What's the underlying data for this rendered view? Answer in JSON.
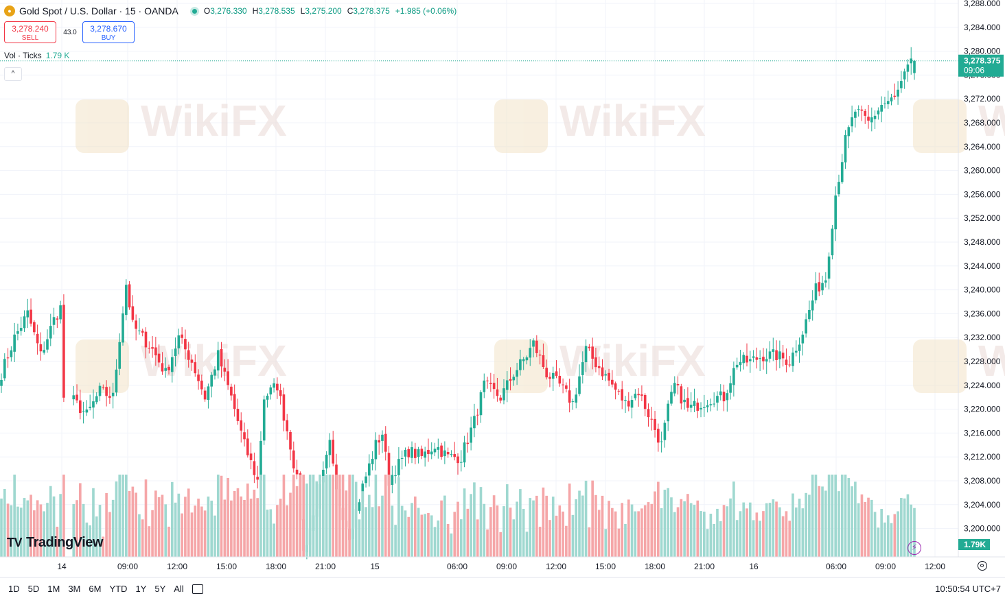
{
  "header": {
    "symbol_title": "Gold Spot / U.S. Dollar · 15 · OANDA",
    "o_label": "O",
    "o_value": "3,276.330",
    "h_label": "H",
    "h_value": "3,278.535",
    "l_label": "L",
    "l_value": "3,275.200",
    "c_label": "C",
    "c_value": "3,278.375",
    "change": "+1.985 (+0.06%)"
  },
  "trade": {
    "sell_price": "3,278.240",
    "sell_label": "SELL",
    "spread": "43.0",
    "buy_price": "3,278.670",
    "buy_label": "BUY"
  },
  "volume_legend": {
    "label": "Vol · Ticks",
    "value": "1.79 K"
  },
  "price_badge": {
    "price": "3,278.375",
    "countdown": "09:06"
  },
  "volume_badge": "1.79K",
  "logo": "TradingView",
  "time_ranges": [
    "1D",
    "5D",
    "1M",
    "3M",
    "6M",
    "YTD",
    "1Y",
    "5Y",
    "All"
  ],
  "clock": "10:50:54 UTC+7",
  "watermark": "WikiFX",
  "colors": {
    "up": "#22ab94",
    "down": "#f23645",
    "up_vol": "#9fd8d0",
    "down_vol": "#f5a6a8",
    "grid": "#f0f3fa",
    "watermark": "#f3e3c8"
  },
  "chart_data": {
    "type": "candlestick",
    "symbol": "XAUUSD",
    "interval": "15",
    "ylim": [
      3198,
      3288
    ],
    "y_ticks": [
      3200,
      3204,
      3208,
      3212,
      3216,
      3220,
      3224,
      3228,
      3232,
      3236,
      3240,
      3244,
      3248,
      3252,
      3256,
      3260,
      3264,
      3268,
      3272,
      3276,
      3280,
      3284,
      3288
    ],
    "x_ticks": [
      "14",
      "09:00",
      "12:00",
      "15:00",
      "18:00",
      "21:00",
      "15",
      "06:00",
      "09:00",
      "12:00",
      "15:00",
      "18:00",
      "21:00",
      "16",
      "06:00",
      "09:00",
      "12:00"
    ],
    "close_anchors": [
      [
        0,
        3226
      ],
      [
        4,
        3232
      ],
      [
        8,
        3236
      ],
      [
        12,
        3229
      ],
      [
        16,
        3235
      ],
      [
        18,
        3237
      ],
      [
        19,
        3222
      ],
      [
        24,
        3219
      ],
      [
        28,
        3223
      ],
      [
        32,
        3222
      ],
      [
        34,
        3232
      ],
      [
        36,
        3241
      ],
      [
        38,
        3234
      ],
      [
        44,
        3230
      ],
      [
        48,
        3226
      ],
      [
        52,
        3232
      ],
      [
        56,
        3228
      ],
      [
        60,
        3222
      ],
      [
        64,
        3229
      ],
      [
        68,
        3222
      ],
      [
        72,
        3214
      ],
      [
        76,
        3208
      ],
      [
        78,
        3222
      ],
      [
        82,
        3224
      ],
      [
        86,
        3214
      ],
      [
        88,
        3208
      ],
      [
        90,
        3196
      ],
      [
        94,
        3204
      ],
      [
        98,
        3214
      ],
      [
        100,
        3206
      ],
      [
        104,
        3199
      ],
      [
        108,
        3207
      ],
      [
        112,
        3214
      ],
      [
        114,
        3216
      ],
      [
        116,
        3208
      ],
      [
        118,
        3210
      ],
      [
        122,
        3213
      ],
      [
        126,
        3212
      ],
      [
        130,
        3214
      ],
      [
        134,
        3212
      ],
      [
        138,
        3212
      ],
      [
        142,
        3218
      ],
      [
        145,
        3224
      ],
      [
        150,
        3222
      ],
      [
        154,
        3226
      ],
      [
        158,
        3229
      ],
      [
        160,
        3231
      ],
      [
        164,
        3226
      ],
      [
        168,
        3224
      ],
      [
        172,
        3221
      ],
      [
        176,
        3230
      ],
      [
        180,
        3227
      ],
      [
        184,
        3224
      ],
      [
        188,
        3221
      ],
      [
        192,
        3223
      ],
      [
        196,
        3218
      ],
      [
        199,
        3214
      ],
      [
        201,
        3220
      ],
      [
        203,
        3224
      ],
      [
        207,
        3220
      ],
      [
        211,
        3221
      ],
      [
        215,
        3222
      ],
      [
        218,
        3222
      ],
      [
        222,
        3228
      ],
      [
        226,
        3228
      ],
      [
        230,
        3229
      ],
      [
        234,
        3229
      ],
      [
        238,
        3228
      ],
      [
        242,
        3233
      ],
      [
        246,
        3240
      ],
      [
        249,
        3242
      ],
      [
        252,
        3256
      ],
      [
        255,
        3265
      ],
      [
        258,
        3270
      ],
      [
        262,
        3268
      ],
      [
        266,
        3271
      ],
      [
        270,
        3272
      ],
      [
        274,
        3277
      ],
      [
        276,
        3278.375
      ]
    ],
    "gap_after_index": 19,
    "last": {
      "open": 3276.33,
      "high": 3278.535,
      "low": 3275.2,
      "close": 3278.375
    },
    "volume_unit": "K ticks",
    "volume_last": 1.79
  }
}
